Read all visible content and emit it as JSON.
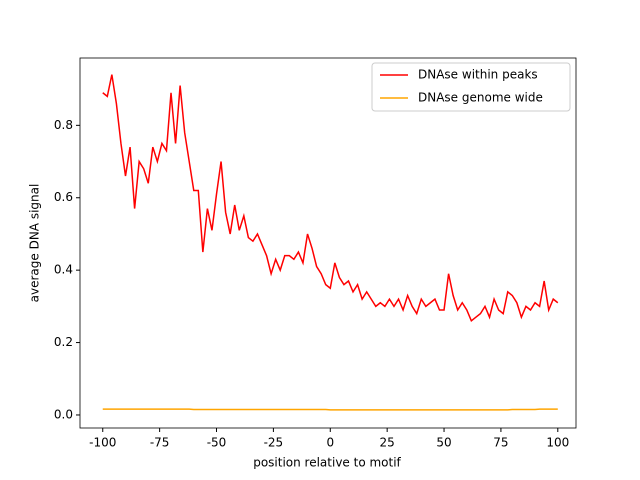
{
  "chart_data": {
    "type": "line",
    "xlabel": "position relative to motif",
    "ylabel": "average DNA signal",
    "x": [
      -100,
      -98,
      -96,
      -94,
      -92,
      -90,
      -88,
      -86,
      -84,
      -82,
      -80,
      -78,
      -76,
      -74,
      -72,
      -70,
      -68,
      -66,
      -64,
      -62,
      -60,
      -58,
      -56,
      -54,
      -52,
      -50,
      -48,
      -46,
      -44,
      -42,
      -40,
      -38,
      -36,
      -34,
      -32,
      -30,
      -28,
      -26,
      -24,
      -22,
      -20,
      -18,
      -16,
      -14,
      -12,
      -10,
      -8,
      -6,
      -4,
      -2,
      0,
      2,
      4,
      6,
      8,
      10,
      12,
      14,
      16,
      18,
      20,
      22,
      24,
      26,
      28,
      30,
      32,
      34,
      36,
      38,
      40,
      42,
      44,
      46,
      48,
      50,
      52,
      54,
      56,
      58,
      60,
      62,
      64,
      66,
      68,
      70,
      72,
      74,
      76,
      78,
      80,
      82,
      84,
      86,
      88,
      90,
      92,
      94,
      96,
      98,
      100
    ],
    "series": [
      {
        "name": "DNAse within peaks",
        "color": "#ff0000",
        "values": [
          0.89,
          0.88,
          0.94,
          0.86,
          0.75,
          0.66,
          0.74,
          0.57,
          0.7,
          0.68,
          0.64,
          0.74,
          0.7,
          0.75,
          0.73,
          0.89,
          0.75,
          0.91,
          0.78,
          0.7,
          0.62,
          0.62,
          0.45,
          0.57,
          0.51,
          0.61,
          0.7,
          0.56,
          0.5,
          0.58,
          0.51,
          0.55,
          0.49,
          0.48,
          0.5,
          0.47,
          0.44,
          0.39,
          0.43,
          0.4,
          0.44,
          0.44,
          0.43,
          0.45,
          0.42,
          0.5,
          0.46,
          0.41,
          0.39,
          0.36,
          0.35,
          0.42,
          0.38,
          0.36,
          0.37,
          0.34,
          0.36,
          0.32,
          0.34,
          0.32,
          0.3,
          0.31,
          0.3,
          0.32,
          0.3,
          0.32,
          0.29,
          0.33,
          0.3,
          0.28,
          0.32,
          0.3,
          0.31,
          0.32,
          0.29,
          0.29,
          0.39,
          0.33,
          0.29,
          0.31,
          0.29,
          0.26,
          0.27,
          0.28,
          0.3,
          0.27,
          0.32,
          0.29,
          0.28,
          0.34,
          0.33,
          0.31,
          0.27,
          0.3,
          0.29,
          0.31,
          0.3,
          0.37,
          0.29,
          0.32,
          0.31
        ]
      },
      {
        "name": "DNAse genome wide",
        "color": "#ffa500",
        "values": [
          0.016,
          0.016,
          0.016,
          0.016,
          0.016,
          0.016,
          0.016,
          0.016,
          0.016,
          0.016,
          0.016,
          0.016,
          0.016,
          0.016,
          0.016,
          0.016,
          0.016,
          0.016,
          0.016,
          0.016,
          0.015,
          0.015,
          0.015,
          0.015,
          0.015,
          0.015,
          0.015,
          0.015,
          0.015,
          0.015,
          0.015,
          0.015,
          0.015,
          0.015,
          0.015,
          0.015,
          0.015,
          0.015,
          0.015,
          0.015,
          0.015,
          0.015,
          0.015,
          0.015,
          0.015,
          0.015,
          0.015,
          0.015,
          0.015,
          0.015,
          0.014,
          0.014,
          0.014,
          0.014,
          0.014,
          0.014,
          0.014,
          0.014,
          0.014,
          0.014,
          0.014,
          0.014,
          0.014,
          0.014,
          0.014,
          0.014,
          0.014,
          0.014,
          0.014,
          0.014,
          0.014,
          0.014,
          0.014,
          0.014,
          0.014,
          0.014,
          0.014,
          0.014,
          0.014,
          0.014,
          0.014,
          0.014,
          0.014,
          0.014,
          0.014,
          0.014,
          0.014,
          0.014,
          0.014,
          0.014,
          0.015,
          0.015,
          0.015,
          0.015,
          0.015,
          0.015,
          0.016,
          0.016,
          0.016,
          0.016,
          0.016
        ]
      }
    ],
    "xlim": [
      -110,
      108
    ],
    "ylim": [
      -0.036,
      0.986
    ],
    "xticks": [
      -100,
      -75,
      -50,
      -25,
      0,
      25,
      50,
      75,
      100
    ],
    "yticks": [
      {
        "value": 0,
        "label": "0.0"
      },
      0.2,
      0.4,
      0.6,
      0.8
    ],
    "legend": "upper right"
  }
}
